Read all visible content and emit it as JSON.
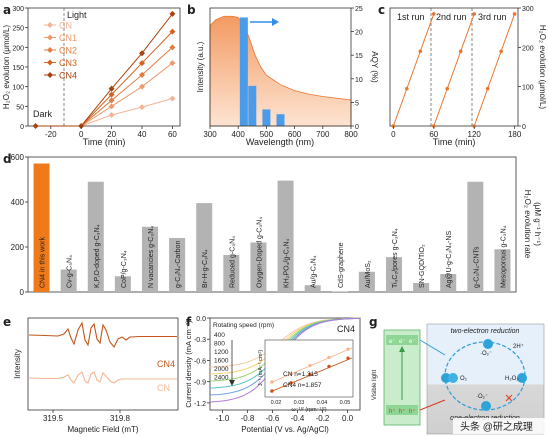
{
  "panels": {
    "a": {
      "letter": "a",
      "ylabel": "H₂O₂ evolution (μmol/L)",
      "xlabel": "Time (min)",
      "dark": "Dark",
      "light": "Light",
      "legend": [
        "CN",
        "CN1",
        "CN2",
        "CN3",
        "CN4"
      ],
      "xticks": [
        "-20",
        "0",
        "20",
        "40",
        "60"
      ],
      "yticks": [
        "0",
        "50",
        "100",
        "150",
        "200",
        "250",
        "300"
      ]
    },
    "b": {
      "letter": "b",
      "ylabel": "Intensity (a.u.)",
      "y2label": "AQY (%)",
      "xlabel": "Wavelength (nm)",
      "xticks": [
        "300",
        "400",
        "500",
        "600",
        "700",
        "800"
      ],
      "y2ticks": [
        "0",
        "5",
        "10",
        "15",
        "20",
        "25"
      ]
    },
    "c": {
      "letter": "c",
      "runs": [
        "1st run",
        "2nd run",
        "3rd run"
      ],
      "ylabel": "H₂O₂ evolution (μmol/L)",
      "xlabel": "Time (min)",
      "xticks": [
        "0",
        "60",
        "120",
        "180"
      ],
      "yticks": [
        "0",
        "100",
        "200",
        "300"
      ]
    },
    "d": {
      "letter": "d",
      "ylabel": "H₂O₂ evolution rate",
      "yunit": "(μM g⁻¹ h⁻¹)",
      "yticks": [
        "0",
        "200",
        "400",
        "600"
      ],
      "bar_labels": [
        "CN4 in this work",
        "Cv-g-C₃N₄",
        "K,P,O-doped g-C₃N₄",
        "CoP/g-C₃N₄",
        "N vacancies g-C₃N₄",
        "g-C₃N₄-Carbon",
        "Br-H-g-C₃N₄",
        "Reduced g-C₃N₄",
        "Oxygen-Doped g-C₃N₄",
        "KH₂PO₄/g-C₃N₄",
        "Au/g-C₃N₄",
        "CdS-graphene",
        "Au/MoS₂",
        "Ti₃C₂/pores g-C₃N₄",
        "SN-GQD/TiO₂",
        "Ag@U-g-C₃N₄-NS",
        "g-C₃N₄-CNTs",
        "Mesoporous g-C₃N₄"
      ]
    },
    "e": {
      "letter": "e",
      "ylabel": "Intensity",
      "xlabel": "Magnetic Field (mT)",
      "xticks": [
        "319.5",
        "319.8"
      ],
      "legend": [
        "CN4",
        "CN"
      ]
    },
    "f": {
      "letter": "f",
      "title": "CN4",
      "ylabel": "Current density (mA cm⁻²)",
      "xlabel": "Potential (V vs. Ag/AgCl)",
      "xticks": [
        "-1.0",
        "-0.8",
        "-0.6",
        "-0.4",
        "-0.2",
        "0.0"
      ],
      "yticks": [
        "-1.2",
        "-0.9",
        "-0.6",
        "-0.3",
        "0.0"
      ],
      "legend_title": "Rotating speed (rpm)",
      "speeds": [
        "400",
        "800",
        "1200",
        "1600",
        "2000",
        "2400"
      ],
      "inset": {
        "ylabel": "J⁻¹ (mA⁻¹ cm²)",
        "xlabel": "ω⁻¹/² (rpm⁻¹/²)",
        "xticks": [
          "0.02",
          "0.03",
          "0.04",
          "0.05"
        ],
        "series": [
          "CN  n=1.315",
          "CN4  n=1.857"
        ]
      }
    },
    "g": {
      "letter": "g",
      "top": "two-electron reduction",
      "bottom": "one-electron reduction",
      "visible_light": "Visible light",
      "electrons": "e⁻",
      "holes": "h⁺",
      "species": [
        "·O₂⁻",
        "2H⁺",
        "O₂",
        "H₂O₂",
        "·O₂⁻"
      ],
      "watermark": "头条 @研之成理"
    }
  },
  "chart_data": [
    {
      "type": "line",
      "panel": "a",
      "ylabel": "H₂O₂ evolution (μmol/L)",
      "xlabel": "Time (min)",
      "x": [
        -30,
        0,
        20,
        40,
        60
      ],
      "xlim": [
        -35,
        65
      ],
      "ylim": [
        0,
        300
      ],
      "series": [
        {
          "name": "CN",
          "values": [
            0,
            0,
            28,
            48,
            70
          ]
        },
        {
          "name": "CN1",
          "values": [
            0,
            0,
            50,
            100,
            160
          ]
        },
        {
          "name": "CN2",
          "values": [
            0,
            0,
            65,
            130,
            200
          ]
        },
        {
          "name": "CN3",
          "values": [
            0,
            0,
            80,
            160,
            240
          ]
        },
        {
          "name": "CN4",
          "values": [
            0,
            0,
            95,
            185,
            285
          ]
        }
      ]
    },
    {
      "type": "bar",
      "panel": "b",
      "xlabel": "Wavelength (nm)",
      "ylabel": "AQY (%)",
      "categories": [
        "420",
        "450",
        "500",
        "550"
      ],
      "values": [
        23,
        8.5,
        3.5,
        2.5
      ],
      "xlim": [
        300,
        800
      ],
      "ylim": [
        0,
        25
      ],
      "absorption_curve": {
        "x": [
          300,
          320,
          350,
          380,
          400,
          420,
          440,
          460,
          480,
          500,
          550,
          600,
          650,
          700,
          800
        ],
        "y": [
          0.85,
          0.9,
          0.93,
          0.93,
          0.92,
          0.86,
          0.74,
          0.6,
          0.5,
          0.43,
          0.35,
          0.3,
          0.27,
          0.25,
          0.22
        ]
      }
    },
    {
      "type": "line",
      "panel": "c",
      "xlabel": "Time (min)",
      "ylabel": "H₂O₂ evolution (μmol/L)",
      "x": [
        0,
        20,
        40,
        60,
        60,
        80,
        100,
        120,
        120,
        140,
        160,
        180
      ],
      "xlim": [
        -5,
        185
      ],
      "ylim": [
        0,
        300
      ],
      "series": [
        {
          "name": "",
          "values": [
            0,
            95,
            190,
            285,
            0,
            95,
            190,
            285,
            0,
            95,
            190,
            285
          ]
        }
      ]
    },
    {
      "type": "bar",
      "panel": "d",
      "ylabel": "H₂O₂ evolution rate (μM g⁻¹ h⁻¹)",
      "categories": [
        "CN4 in this work",
        "Cv-g-C₃N₄",
        "K,P,O-doped g-C₃N₄",
        "CoP/g-C₃N₄",
        "N vacancies g-C₃N₄",
        "g-C₃N₄-Carbon",
        "Br-H-g-C₃N₄",
        "Reduced g-C₃N₄",
        "Oxygen-Doped g-C₃N₄",
        "KH₂PO₄/g-C₃N₄",
        "Au/g-C₃N₄",
        "CdS-graphene",
        "Au/MoS₂",
        "Ti₃C₂/pores g-C₃N₄",
        "SN-GQD/TiO₂",
        "Ag@U-g-C₃N₄-NS",
        "g-C₃N₄-CNTs",
        "Mesoporous g-C₃N₄"
      ],
      "values": [
        571,
        100,
        490,
        70,
        290,
        240,
        395,
        165,
        220,
        495,
        30,
        2,
        90,
        155,
        40,
        80,
        490,
        190
      ],
      "ylim": [
        0,
        600
      ]
    }
  ],
  "colors": {
    "CN": "#f4b396",
    "CN1": "#ef9a6c",
    "CN2": "#e57b41",
    "CN3": "#d4631f",
    "CN4": "#a8430f",
    "orange": "#e8762c",
    "blue_bar": "#4a9bea",
    "absorb": "#f4a777",
    "grey_bar": "#b3b3b3",
    "highlight_bar": "#f07a1a"
  }
}
